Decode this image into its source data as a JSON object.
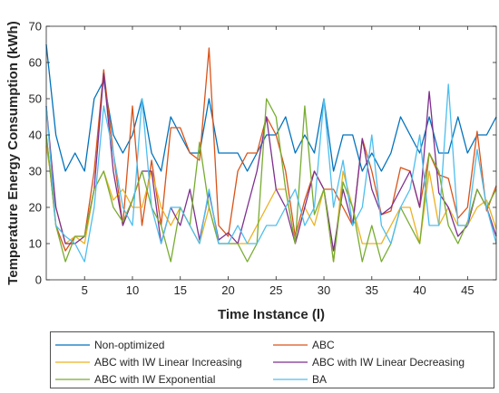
{
  "chart_data": {
    "type": "line",
    "xlabel": "Time Instance (l)",
    "ylabel": "Temperature Energy Consumption (kWh)",
    "xlim": [
      1,
      48
    ],
    "ylim": [
      0,
      70
    ],
    "xticks": [
      5,
      10,
      15,
      20,
      25,
      30,
      35,
      40,
      45
    ],
    "yticks": [
      0,
      10,
      20,
      30,
      40,
      50,
      60,
      70
    ],
    "grid": false,
    "legend_position": "bottom",
    "x": [
      1,
      2,
      3,
      4,
      5,
      6,
      7,
      8,
      9,
      10,
      11,
      12,
      13,
      14,
      15,
      16,
      17,
      18,
      19,
      20,
      21,
      22,
      23,
      24,
      25,
      26,
      27,
      28,
      29,
      30,
      31,
      32,
      33,
      34,
      35,
      36,
      37,
      38,
      39,
      40,
      41,
      42,
      43,
      44,
      45,
      46,
      47,
      48
    ],
    "series": [
      {
        "name": "Non-optimized",
        "color": "#0072BD",
        "values": [
          65,
          40,
          30,
          35,
          30,
          50,
          55,
          40,
          35,
          40,
          50,
          35,
          30,
          45,
          40,
          35,
          35,
          50,
          35,
          35,
          35,
          30,
          35,
          40,
          40,
          45,
          35,
          40,
          35,
          50,
          30,
          40,
          40,
          30,
          35,
          30,
          35,
          45,
          40,
          35,
          45,
          35,
          35,
          45,
          35,
          40,
          40,
          45
        ]
      },
      {
        "name": "ABC",
        "color": "#D95319",
        "values": [
          40,
          15,
          8,
          12,
          12,
          30,
          58,
          35,
          15,
          48,
          15,
          33,
          15,
          42,
          42,
          35,
          33,
          64,
          15,
          12,
          30,
          35,
          35,
          45,
          40,
          30,
          12,
          22,
          30,
          25,
          25,
          20,
          15,
          39,
          30,
          18,
          19,
          31,
          30,
          20,
          35,
          29,
          28,
          17,
          20,
          41,
          19,
          26
        ]
      },
      {
        "name": "ABC with IW Linear Increasing",
        "color": "#EDB120",
        "values": [
          37,
          20,
          10,
          12,
          10,
          25,
          30,
          22,
          25,
          20,
          20,
          30,
          20,
          15,
          20,
          15,
          10,
          20,
          10,
          10,
          10,
          10,
          15,
          20,
          25,
          25,
          10,
          20,
          15,
          25,
          5,
          30,
          20,
          10,
          10,
          10,
          15,
          20,
          20,
          10,
          30,
          15,
          20,
          15,
          15,
          20,
          22,
          14
        ]
      },
      {
        "name": "ABC with IW Linear Decreasing",
        "color": "#7E2F8E",
        "values": [
          48,
          20,
          10,
          10,
          12,
          25,
          57,
          30,
          15,
          22,
          30,
          30,
          10,
          20,
          15,
          25,
          11,
          24,
          11,
          13,
          10,
          20,
          30,
          45,
          25,
          20,
          10,
          20,
          30,
          25,
          8,
          25,
          15,
          39,
          25,
          18,
          20,
          25,
          30,
          20,
          52,
          24,
          20,
          12,
          15,
          25,
          20,
          12
        ]
      },
      {
        "name": "ABC with IW Exponential",
        "color": "#77AC30",
        "values": [
          40,
          15,
          5,
          12,
          12,
          25,
          30,
          20,
          16,
          22,
          30,
          20,
          15,
          5,
          20,
          15,
          38,
          20,
          10,
          10,
          10,
          5,
          10,
          50,
          45,
          25,
          10,
          48,
          18,
          25,
          5,
          27,
          20,
          5,
          15,
          5,
          10,
          20,
          15,
          10,
          35,
          30,
          15,
          10,
          16,
          25,
          20,
          25
        ]
      },
      {
        "name": "BA",
        "color": "#4DBEEE",
        "values": [
          48,
          15,
          12,
          10,
          5,
          20,
          48,
          35,
          20,
          15,
          50,
          20,
          10,
          20,
          20,
          15,
          10,
          25,
          10,
          10,
          15,
          10,
          10,
          15,
          15,
          20,
          25,
          15,
          20,
          50,
          20,
          33,
          15,
          20,
          40,
          15,
          10,
          20,
          25,
          40,
          15,
          15,
          54,
          15,
          15,
          36,
          20,
          10
        ]
      }
    ]
  }
}
